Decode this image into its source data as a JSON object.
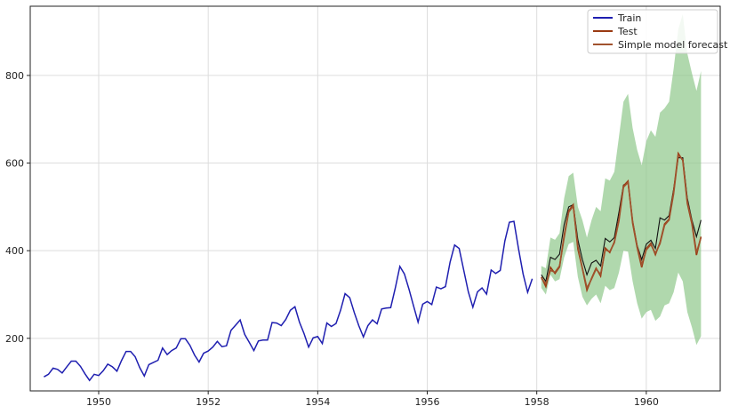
{
  "chart_data": {
    "type": "line",
    "title": "",
    "xlabel": "",
    "ylabel": "",
    "xlim": [
      1948.75,
      1961.35
    ],
    "ylim": [
      80,
      958
    ],
    "grid": true,
    "legend_position": "top-right",
    "x_ticks": [
      1950,
      1952,
      1954,
      1956,
      1958,
      1960
    ],
    "y_ticks": [
      200,
      400,
      600,
      800
    ],
    "colors": {
      "train": "#1f1fb0",
      "test": "#9a3a12",
      "forecast": "#a0522d",
      "actual_overlay": "#111111",
      "band": "#8fc88a",
      "axis": "#222222",
      "grid": "#dddddd"
    },
    "series": [
      {
        "name": "Train",
        "start": 1949.0,
        "step": 0.0833333,
        "values": [
          112,
          118,
          132,
          129,
          121,
          135,
          148,
          148,
          136,
          119,
          104,
          118,
          115,
          126,
          141,
          135,
          125,
          149,
          170,
          170,
          158,
          133,
          114,
          140,
          145,
          150,
          178,
          163,
          172,
          178,
          199,
          199,
          184,
          162,
          146,
          166,
          171,
          180,
          193,
          181,
          183,
          218,
          230,
          242,
          209,
          191,
          172,
          194,
          196,
          196,
          236,
          235,
          229,
          243,
          264,
          272,
          237,
          211,
          180,
          201,
          204,
          188,
          235,
          227,
          234,
          264,
          302,
          293,
          259,
          229,
          203,
          229,
          242,
          233,
          267,
          269,
          270,
          315,
          364,
          347,
          312,
          274,
          237,
          278,
          284,
          277,
          317,
          313,
          318,
          374,
          413,
          405,
          355,
          306,
          271,
          306,
          315,
          301,
          356,
          348,
          355,
          422,
          465,
          467,
          404,
          347,
          305,
          336
        ]
      },
      {
        "name": "Test",
        "start": 1958.0833,
        "step": 0.0833333,
        "values": [
          340,
          318,
          362,
          348,
          363,
          435,
          491,
          505,
          404,
          359,
          310,
          337,
          360,
          342,
          406,
          396,
          420,
          472,
          548,
          559,
          463,
          407,
          362,
          405,
          417,
          391,
          419,
          461,
          472,
          535,
          622,
          606,
          508,
          461,
          390,
          432
        ]
      },
      {
        "name": "Simple model forecast",
        "start": 1958.0833,
        "step": 0.0833333,
        "values": [
          337,
          325,
          355,
          351,
          365,
          430,
          488,
          502,
          410,
          360,
          315,
          335,
          358,
          346,
          402,
          398,
          418,
          468,
          545,
          556,
          467,
          410,
          368,
          402,
          414,
          394,
          416,
          458,
          470,
          530,
          618,
          608,
          512,
          465,
          396,
          430
        ]
      }
    ],
    "actual_overlay": {
      "start": 1958.0833,
      "step": 0.0833333,
      "values": [
        345,
        330,
        385,
        380,
        392,
        460,
        500,
        505,
        425,
        380,
        345,
        372,
        378,
        365,
        428,
        420,
        430,
        488,
        550,
        555,
        468,
        412,
        380,
        415,
        424,
        405,
        475,
        470,
        480,
        540,
        612,
        612,
        520,
        470,
        432,
        470
      ]
    },
    "forecast_band": {
      "start": 1958.0833,
      "step": 0.0833333,
      "upper": [
        365,
        360,
        430,
        425,
        440,
        520,
        570,
        578,
        500,
        470,
        430,
        470,
        500,
        490,
        565,
        560,
        580,
        660,
        740,
        758,
        680,
        630,
        595,
        650,
        675,
        660,
        715,
        725,
        740,
        815,
        905,
        940,
        850,
        805,
        765,
        810
      ],
      "lower": [
        315,
        300,
        345,
        330,
        335,
        385,
        415,
        420,
        340,
        295,
        275,
        290,
        300,
        280,
        320,
        310,
        315,
        350,
        400,
        398,
        330,
        280,
        245,
        260,
        265,
        240,
        250,
        275,
        280,
        305,
        350,
        330,
        260,
        225,
        185,
        205
      ]
    }
  }
}
